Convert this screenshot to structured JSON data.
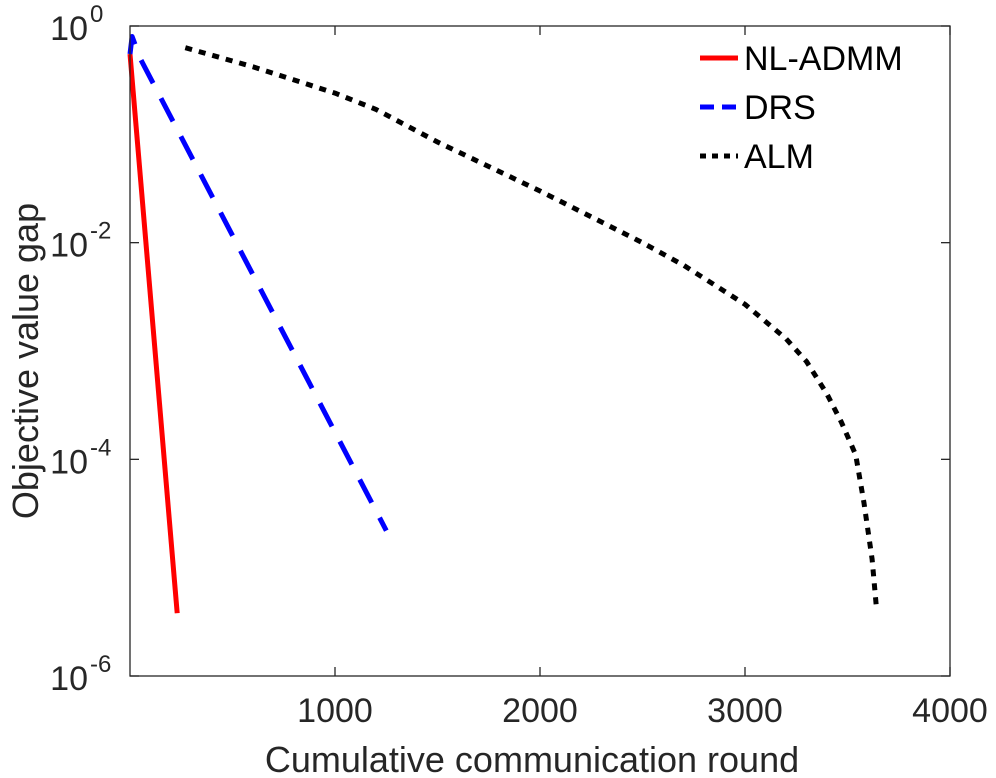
{
  "chart_data": {
    "type": "line",
    "title": "",
    "xlabel": "Cumulative communication round",
    "ylabel": "Objective value gap",
    "xlim": [
      0,
      4000
    ],
    "ylim": [
      1e-06,
      1
    ],
    "yscale": "log",
    "grid": false,
    "legend": {
      "placement": "top-right",
      "box": false
    },
    "x_ticks": [
      {
        "value": 1000,
        "label": "1000"
      },
      {
        "value": 2000,
        "label": "2000"
      },
      {
        "value": 3000,
        "label": "3000"
      },
      {
        "value": 4000,
        "label": "4000"
      }
    ],
    "y_ticks": [
      {
        "value": 1e-06,
        "base": "10",
        "exp": "-6"
      },
      {
        "value": 0.0001,
        "base": "10",
        "exp": "-4"
      },
      {
        "value": 0.01,
        "base": "10",
        "exp": "-2"
      },
      {
        "value": 1,
        "base": "10",
        "exp": "0"
      }
    ],
    "series": [
      {
        "name": "NL-ADMM",
        "color": "#ff0000",
        "style": "solid",
        "x": [
          0,
          230
        ],
        "y": [
          0.55,
          3.8e-06
        ]
      },
      {
        "name": "DRS",
        "color": "#0000ff",
        "style": "dashed",
        "x": [
          0,
          10,
          50,
          1250
        ],
        "y": [
          0.55,
          0.8,
          0.5,
          2.2e-05
        ]
      },
      {
        "name": "ALM",
        "color": "#000000",
        "style": "dotted",
        "x": [
          270,
          600,
          1000,
          1200,
          1500,
          2000,
          2500,
          2700,
          3000,
          3200,
          3300,
          3400,
          3470,
          3540,
          3580,
          3620,
          3640
        ],
        "y": [
          0.63,
          0.42,
          0.24,
          0.17,
          0.085,
          0.03,
          0.01,
          0.0062,
          0.0027,
          0.0013,
          0.0008,
          0.0004,
          0.00022,
          0.00011,
          4e-05,
          1.2e-05,
          4.5e-06
        ]
      }
    ]
  }
}
